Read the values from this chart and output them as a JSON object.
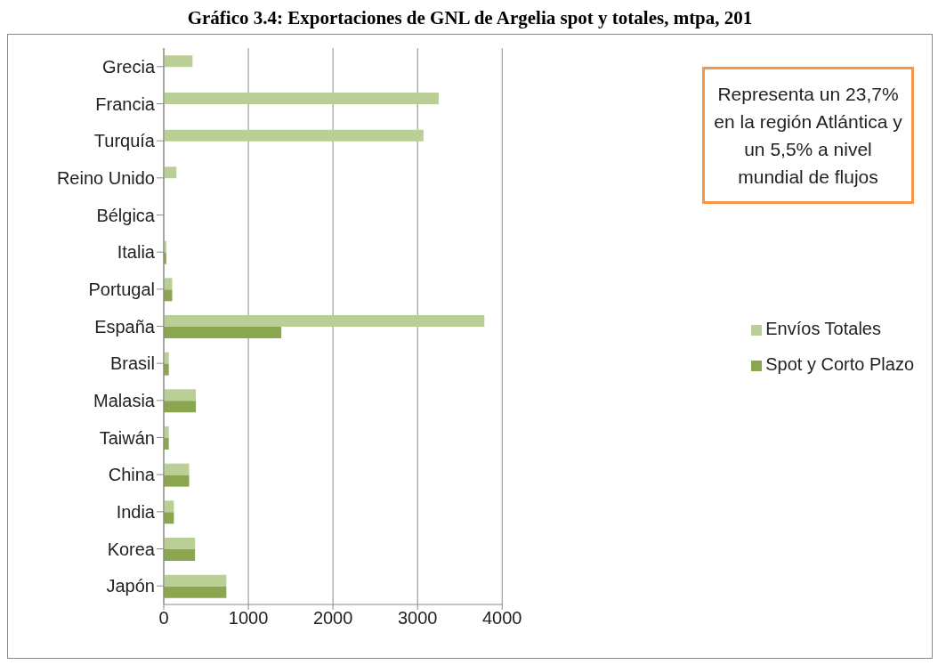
{
  "chart_data": {
    "type": "bar",
    "orientation": "horizontal",
    "title": "Gráfico 3.4: Exportaciones de GNL de Argelia spot y totales, mtpa, 201",
    "categories": [
      "Grecia",
      "Francia",
      "Turquía",
      "Reino Unido",
      "Bélgica",
      "Italia",
      "Portugal",
      "España",
      "Brasil",
      "Malasia",
      "Taiwán",
      "China",
      "India",
      "Korea",
      "Japón"
    ],
    "series": [
      {
        "name": "Envíos Totales",
        "color": "#b9cf96",
        "values": [
          340,
          3250,
          3070,
          150,
          0,
          30,
          100,
          3790,
          60,
          380,
          60,
          300,
          120,
          370,
          740
        ]
      },
      {
        "name": "Spot y Corto Plazo",
        "color": "#8aa64f",
        "values": [
          0,
          0,
          0,
          0,
          0,
          30,
          100,
          1390,
          60,
          380,
          60,
          300,
          120,
          370,
          740
        ]
      }
    ],
    "xlim": [
      0,
      4000
    ],
    "xticks": [
      0,
      1000,
      2000,
      3000,
      4000
    ],
    "grid": "x",
    "legend": "right",
    "annotations": [
      "Representa un 23,7% en la región Atlántica y un 5,5%  a nivel mundial de flujos"
    ]
  }
}
